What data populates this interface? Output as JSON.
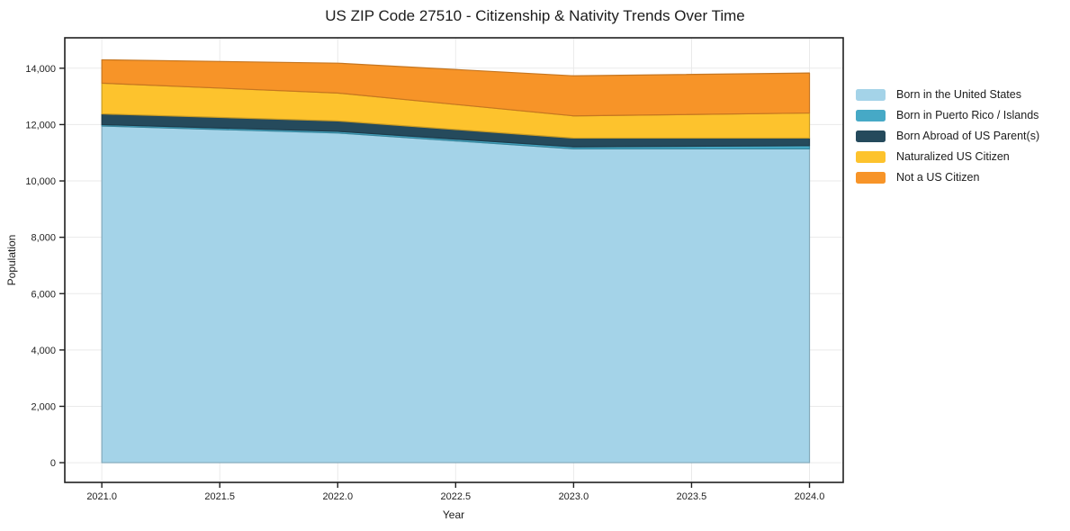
{
  "chart_data": {
    "type": "area",
    "stacked": true,
    "title": "US ZIP Code 27510 - Citizenship & Nativity Trends Over Time",
    "xlabel": "Year",
    "ylabel": "Population",
    "x": [
      2021,
      2022,
      2023,
      2024
    ],
    "series": [
      {
        "name": "Born in the United States",
        "color": "#a4d3e8",
        "values": [
          11950,
          11700,
          11140,
          11140
        ]
      },
      {
        "name": "Born in Puerto Rico / Islands",
        "color": "#46a9c6",
        "values": [
          50,
          60,
          70,
          110
        ]
      },
      {
        "name": "Born Abroad of US Parent(s)",
        "color": "#254a5c",
        "values": [
          380,
          370,
          310,
          270
        ]
      },
      {
        "name": "Naturalized US Citizen",
        "color": "#fdc32d",
        "values": [
          1090,
          990,
          790,
          890
        ]
      },
      {
        "name": "Not a US Citizen",
        "color": "#f79428",
        "values": [
          830,
          1060,
          1420,
          1420
        ]
      }
    ],
    "stack_totals": [
      14300,
      14180,
      13730,
      13830
    ],
    "xlim": [
      2020.843,
      2024.143
    ],
    "ylim": [
      -700,
      15080
    ],
    "xticks": [
      2021.0,
      2021.5,
      2022.0,
      2022.5,
      2023.0,
      2023.5,
      2024.0
    ],
    "xtick_labels": [
      "2021.0",
      "2021.5",
      "2022.0",
      "2022.5",
      "2023.0",
      "2023.5",
      "2024.0"
    ],
    "yticks": [
      0,
      2000,
      4000,
      6000,
      8000,
      10000,
      12000,
      14000
    ],
    "ytick_labels": [
      "0",
      "2,000",
      "4,000",
      "6,000",
      "8,000",
      "10,000",
      "12,000",
      "14,000"
    ],
    "grid": true,
    "grid_color": "#eaeaea",
    "axis_color": "#1f1f1f",
    "tick_label_color": "#1f1f1f",
    "background_color": "#ffffff",
    "legend_position": "right"
  }
}
